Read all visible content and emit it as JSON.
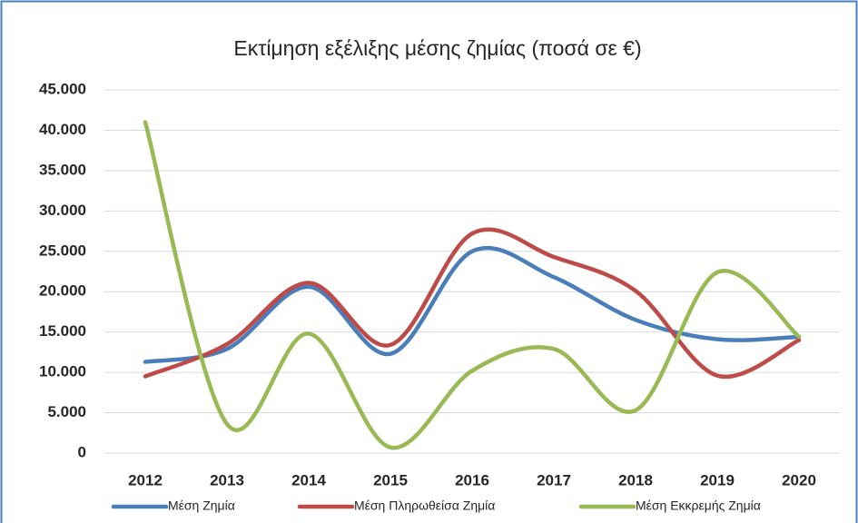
{
  "chart_data": {
    "type": "line",
    "title": "Εκτίμηση εξέλιξης μέσης ζημίας (ποσά σε €)",
    "categories": [
      "2012",
      "2013",
      "2014",
      "2015",
      "2016",
      "2017",
      "2018",
      "2019",
      "2020"
    ],
    "series": [
      {
        "name": "Μέση Ζημία",
        "color": "#4a7ebb",
        "values": [
          11300,
          12900,
          20600,
          12300,
          25000,
          21800,
          16500,
          14100,
          14400
        ]
      },
      {
        "name": "Μέση Πληρωθείσα Ζημία",
        "color": "#be4b48",
        "values": [
          9500,
          13500,
          21100,
          13400,
          27200,
          24300,
          20100,
          9600,
          14000
        ]
      },
      {
        "name": "Μέση Εκκρεμής Ζημία",
        "color": "#98b954",
        "values": [
          41000,
          3600,
          14800,
          700,
          10200,
          12900,
          5300,
          22400,
          14400
        ]
      }
    ],
    "ylim": [
      0,
      45000
    ],
    "yticks": [
      0,
      {
        "value": 5000,
        "label": "5.000"
      },
      {
        "value": 10000,
        "label": "10.000"
      },
      {
        "value": 15000,
        "label": "15.000"
      },
      {
        "value": 20000,
        "label": "20.000"
      },
      {
        "value": 25000,
        "label": "25.000"
      },
      {
        "value": 30000,
        "label": "30.000"
      },
      {
        "value": 35000,
        "label": "35.000"
      },
      {
        "value": 40000,
        "label": "40.000"
      },
      {
        "value": 45000,
        "label": "45.000"
      }
    ],
    "grid": true,
    "smooth": true,
    "legend": "bottom"
  }
}
